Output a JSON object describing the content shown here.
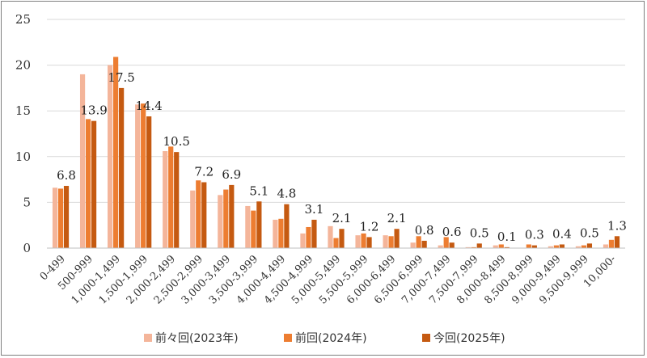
{
  "chart_data": {
    "type": "bar",
    "title": "",
    "xlabel": "",
    "ylabel": "",
    "ylim": [
      0,
      25
    ],
    "yticks": [
      "0",
      "5",
      "10",
      "15",
      "20",
      "25"
    ],
    "grid": true,
    "legend_position": "bottom",
    "categories": [
      "0-499",
      "500-999",
      "1,000-1,499",
      "1,500-1,999",
      "2,000-2,499",
      "2,500-2,999",
      "3,000-3,499",
      "3,500-3,999",
      "4,000-4,499",
      "4,500-4,999",
      "5,000-5,499",
      "5,500-5,999",
      "6,000-6,499",
      "6,500-6,999",
      "7,000-7,499",
      "7,500-7,999",
      "8,000-8,499",
      "8,500-8,999",
      "9,000-9,499",
      "9,500-9,999",
      "10,000-"
    ],
    "series": [
      {
        "name": "前々回(2023年)",
        "color": "#f4b59a",
        "values": [
          6.6,
          19.0,
          20.0,
          15.7,
          10.6,
          6.3,
          5.8,
          4.6,
          3.1,
          1.6,
          2.4,
          1.4,
          1.4,
          0.6,
          0.3,
          0.1,
          0.3,
          0.0,
          0.2,
          0.2,
          0.4
        ]
      },
      {
        "name": "前回(2024年)",
        "color": "#ed7d31",
        "values": [
          6.5,
          14.1,
          20.9,
          15.8,
          11.1,
          7.4,
          6.4,
          4.1,
          3.2,
          2.3,
          1.1,
          1.6,
          1.3,
          1.3,
          1.2,
          0.1,
          0.4,
          0.4,
          0.3,
          0.3,
          0.9
        ]
      },
      {
        "name": "今回(2025年)",
        "color": "#c55a11",
        "values": [
          6.8,
          13.9,
          17.5,
          14.4,
          10.5,
          7.2,
          6.9,
          5.1,
          4.8,
          3.1,
          2.1,
          1.2,
          2.1,
          0.8,
          0.6,
          0.5,
          0.1,
          0.3,
          0.4,
          0.5,
          1.3
        ]
      }
    ],
    "data_labels": [
      "6.8",
      "13.9",
      "17.5",
      "14.4",
      "10.5",
      "7.2",
      "6.9",
      "5.1",
      "4.8",
      "3.1",
      "2.1",
      "1.2",
      "2.1",
      "0.8",
      "0.6",
      "0.5",
      "0.1",
      "0.3",
      "0.4",
      "0.5",
      "1.3"
    ],
    "data_label_series": 2
  }
}
